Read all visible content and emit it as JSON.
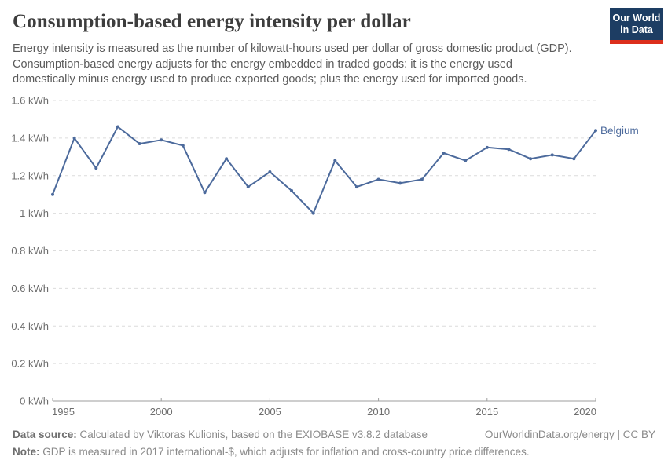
{
  "header": {
    "logo": {
      "line1": "Our World",
      "line2": "in Data",
      "bg_color": "#1d3d63",
      "accent_color": "#dc2e1c"
    }
  },
  "chart_data": {
    "type": "line",
    "title": "Consumption-based energy intensity per dollar",
    "subtitle_lines": [
      "Energy intensity is measured as the number of kilowatt-hours used per dollar of gross domestic product (GDP).",
      "Consumption-based energy adjusts for the energy embedded in traded goods: it is the energy used",
      "domestically minus energy used to produce exported goods; plus the energy used for imported goods."
    ],
    "unit": "kWh",
    "x": [
      1995,
      1996,
      1997,
      1998,
      1999,
      2000,
      2001,
      2002,
      2003,
      2004,
      2005,
      2006,
      2007,
      2008,
      2009,
      2010,
      2011,
      2012,
      2013,
      2014,
      2015,
      2016,
      2017,
      2018,
      2019,
      2020
    ],
    "series": [
      {
        "name": "Belgium",
        "color": "#4C6A9C",
        "values": [
          1.1,
          1.4,
          1.24,
          1.46,
          1.37,
          1.39,
          1.36,
          1.11,
          1.29,
          1.14,
          1.22,
          1.12,
          1.0,
          1.28,
          1.14,
          1.18,
          1.16,
          1.18,
          1.32,
          1.28,
          1.35,
          1.34,
          1.29,
          1.31,
          1.29,
          1.44
        ]
      }
    ],
    "xlim": [
      1995,
      2020
    ],
    "ylim": [
      0,
      1.6
    ],
    "x_ticks": [
      1995,
      2000,
      2005,
      2010,
      2015,
      2020
    ],
    "y_ticks": [
      0,
      0.2,
      0.4,
      0.6,
      0.8,
      1,
      1.2,
      1.4,
      1.6
    ],
    "y_tick_labels": [
      "0 kWh",
      "0.2 kWh",
      "0.4 kWh",
      "0.6 kWh",
      "0.8 kWh",
      "1 kWh",
      "1.2 kWh",
      "1.4 kWh",
      "1.6 kWh"
    ],
    "grid": "horizontal-dashed",
    "legend": "end-of-line-label",
    "end_label": "Belgium"
  },
  "colors": {
    "line": "#4C6A9C",
    "grid": "#dcdcdc",
    "axis": "#9e9e9e",
    "tick_label": "#6d6d6d"
  },
  "footer": {
    "datasource_label": "Data source:",
    "datasource_text": " Calculated by Viktoras Kulionis, based on the EXIOBASE v3.8.2 database",
    "credit": "OurWorldinData.org/energy | CC BY",
    "note_label": "Note:",
    "note_text": " GDP is measured in 2017 international-$, which adjusts for inflation and cross-country price differences."
  }
}
